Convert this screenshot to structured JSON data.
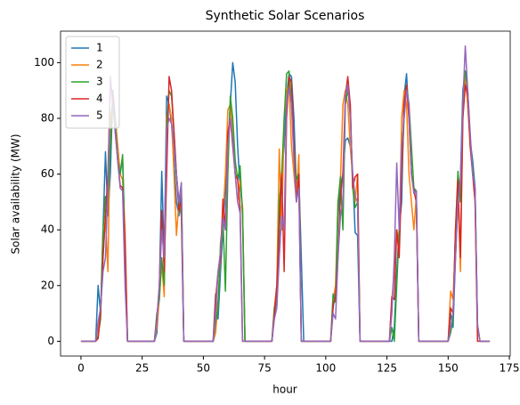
{
  "chart_data": {
    "type": "line",
    "title": "Synthetic Solar Scenarios",
    "x_label": "hour",
    "y_label": "Solar availability (MW)",
    "xlim": [
      -8.35,
      175.35
    ],
    "ylim": [
      -5.3,
      111.3
    ],
    "xticks": [
      0,
      25,
      50,
      75,
      100,
      125,
      150,
      175
    ],
    "yticks": [
      0,
      20,
      40,
      60,
      80,
      100
    ],
    "legend": "upper left",
    "x": [
      0,
      1,
      2,
      3,
      4,
      5,
      6,
      7,
      8,
      9,
      10,
      11,
      12,
      13,
      14,
      15,
      16,
      17,
      18,
      19,
      20,
      21,
      22,
      23,
      24,
      25,
      26,
      27,
      28,
      29,
      30,
      31,
      32,
      33,
      34,
      35,
      36,
      37,
      38,
      39,
      40,
      41,
      42,
      43,
      44,
      45,
      46,
      47,
      48,
      49,
      50,
      51,
      52,
      53,
      54,
      55,
      56,
      57,
      58,
      59,
      60,
      61,
      62,
      63,
      64,
      65,
      66,
      67,
      68,
      69,
      70,
      71,
      72,
      73,
      74,
      75,
      76,
      77,
      78,
      79,
      80,
      81,
      82,
      83,
      84,
      85,
      86,
      87,
      88,
      89,
      90,
      91,
      92,
      93,
      94,
      95,
      96,
      97,
      98,
      99,
      100,
      101,
      102,
      103,
      104,
      105,
      106,
      107,
      108,
      109,
      110,
      111,
      112,
      113,
      114,
      115,
      116,
      117,
      118,
      119,
      120,
      121,
      122,
      123,
      124,
      125,
      126,
      127,
      128,
      129,
      130,
      131,
      132,
      133,
      134,
      135,
      136,
      137,
      138,
      139,
      140,
      141,
      142,
      143,
      144,
      145,
      146,
      147,
      148,
      149,
      150,
      151,
      152,
      153,
      154,
      155,
      156,
      157,
      158,
      159,
      160,
      161,
      162,
      163,
      164,
      165,
      166,
      167
    ],
    "series": [
      {
        "name": "1",
        "color": "#1f77b4",
        "values": [
          0,
          0,
          0,
          0,
          0,
          0,
          0,
          20,
          10,
          40,
          68,
          45,
          60,
          90,
          80,
          70,
          60,
          66,
          35,
          0,
          0,
          0,
          0,
          0,
          0,
          0,
          0,
          0,
          0,
          0,
          0,
          3,
          18,
          61,
          30,
          88,
          85,
          78,
          65,
          50,
          45,
          55,
          0,
          0,
          0,
          0,
          0,
          0,
          0,
          0,
          0,
          0,
          0,
          0,
          0,
          17,
          8,
          25,
          40,
          55,
          70,
          85,
          100,
          93,
          70,
          55,
          48,
          0,
          0,
          0,
          0,
          0,
          0,
          0,
          0,
          0,
          0,
          0,
          0,
          10,
          15,
          40,
          60,
          70,
          88,
          96,
          95,
          80,
          55,
          60,
          30,
          0,
          0,
          0,
          0,
          0,
          0,
          0,
          0,
          0,
          0,
          0,
          0,
          12,
          18,
          45,
          55,
          60,
          72,
          73,
          70,
          60,
          39,
          38,
          0,
          0,
          0,
          0,
          0,
          0,
          0,
          0,
          0,
          0,
          0,
          0,
          0,
          0,
          5,
          25,
          40,
          50,
          88,
          96,
          80,
          60,
          55,
          53,
          0,
          0,
          0,
          0,
          0,
          0,
          0,
          0,
          0,
          0,
          0,
          0,
          0,
          10,
          5,
          30,
          50,
          58,
          90,
          97,
          85,
          72,
          65,
          55,
          5,
          0,
          0,
          0,
          0,
          0
        ]
      },
      {
        "name": "2",
        "color": "#ff7f0e",
        "values": [
          0,
          0,
          0,
          0,
          0,
          0,
          0,
          5,
          12,
          30,
          45,
          25,
          80,
          85,
          80,
          70,
          60,
          58,
          40,
          0,
          0,
          0,
          0,
          0,
          0,
          0,
          0,
          0,
          0,
          0,
          0,
          5,
          15,
          28,
          16,
          80,
          85,
          80,
          60,
          38,
          50,
          56,
          0,
          0,
          0,
          0,
          0,
          0,
          0,
          0,
          0,
          0,
          0,
          0,
          0,
          3,
          15,
          30,
          45,
          60,
          83,
          85,
          75,
          60,
          50,
          58,
          48,
          0,
          0,
          0,
          0,
          0,
          0,
          0,
          0,
          0,
          0,
          0,
          0,
          12,
          20,
          69,
          40,
          80,
          90,
          92,
          70,
          60,
          50,
          67,
          0,
          0,
          0,
          0,
          0,
          0,
          0,
          0,
          0,
          0,
          0,
          0,
          0,
          15,
          20,
          50,
          58,
          85,
          90,
          85,
          70,
          60,
          50,
          60,
          0,
          0,
          0,
          0,
          0,
          0,
          0,
          0,
          0,
          0,
          0,
          0,
          0,
          15,
          25,
          40,
          35,
          80,
          90,
          85,
          60,
          50,
          40,
          52,
          0,
          0,
          0,
          0,
          0,
          0,
          0,
          0,
          0,
          0,
          0,
          0,
          0,
          18,
          15,
          35,
          55,
          25,
          80,
          95,
          85,
          70,
          62,
          50,
          5,
          0,
          0,
          0,
          0,
          0
        ]
      },
      {
        "name": "3",
        "color": "#2ca02c",
        "values": [
          0,
          0,
          0,
          0,
          0,
          0,
          0,
          2,
          8,
          40,
          52,
          50,
          70,
          88,
          78,
          65,
          60,
          67,
          30,
          0,
          0,
          0,
          0,
          0,
          0,
          0,
          0,
          0,
          0,
          0,
          0,
          10,
          15,
          30,
          20,
          75,
          90,
          88,
          75,
          60,
          50,
          45,
          0,
          0,
          0,
          0,
          0,
          0,
          0,
          0,
          0,
          0,
          0,
          0,
          0,
          7,
          12,
          35,
          44,
          18,
          60,
          88,
          80,
          65,
          58,
          63,
          45,
          0,
          0,
          0,
          0,
          0,
          0,
          0,
          0,
          0,
          0,
          0,
          0,
          12,
          15,
          50,
          60,
          80,
          96,
          97,
          85,
          70,
          58,
          60,
          0,
          0,
          0,
          0,
          0,
          0,
          0,
          0,
          0,
          0,
          0,
          0,
          0,
          17,
          14,
          50,
          59,
          40,
          85,
          90,
          85,
          55,
          48,
          50,
          0,
          0,
          0,
          0,
          0,
          0,
          0,
          0,
          0,
          0,
          0,
          0,
          0,
          5,
          0,
          20,
          40,
          60,
          80,
          92,
          85,
          70,
          55,
          54,
          0,
          0,
          0,
          0,
          0,
          0,
          0,
          0,
          0,
          0,
          0,
          0,
          0,
          3,
          8,
          40,
          61,
          50,
          88,
          97,
          90,
          72,
          62,
          52,
          6,
          0,
          0,
          0,
          0,
          0
        ]
      },
      {
        "name": "4",
        "color": "#d62728",
        "values": [
          0,
          0,
          0,
          0,
          0,
          0,
          0,
          1,
          10,
          30,
          45,
          60,
          92,
          88,
          75,
          65,
          56,
          55,
          35,
          0,
          0,
          0,
          0,
          0,
          0,
          0,
          0,
          0,
          0,
          0,
          0,
          8,
          20,
          47,
          25,
          60,
          95,
          90,
          75,
          60,
          47,
          50,
          0,
          0,
          0,
          0,
          0,
          0,
          0,
          0,
          0,
          0,
          0,
          0,
          0,
          15,
          25,
          30,
          51,
          40,
          75,
          80,
          70,
          60,
          58,
          48,
          0,
          0,
          0,
          0,
          0,
          0,
          0,
          0,
          0,
          0,
          0,
          0,
          0,
          10,
          20,
          40,
          60,
          25,
          80,
          95,
          93,
          70,
          50,
          60,
          0,
          0,
          0,
          0,
          0,
          0,
          0,
          0,
          0,
          0,
          0,
          0,
          0,
          13,
          16,
          30,
          52,
          60,
          88,
          95,
          85,
          55,
          59,
          60,
          0,
          0,
          0,
          0,
          0,
          0,
          0,
          0,
          0,
          0,
          0,
          0,
          0,
          16,
          15,
          40,
          30,
          60,
          85,
          92,
          80,
          60,
          54,
          50,
          0,
          0,
          0,
          0,
          0,
          0,
          0,
          0,
          0,
          0,
          0,
          0,
          0,
          12,
          10,
          40,
          58,
          30,
          80,
          92,
          88,
          70,
          60,
          50,
          0,
          0,
          0,
          0,
          0,
          0
        ]
      },
      {
        "name": "5",
        "color": "#9467bd",
        "values": [
          0,
          0,
          0,
          0,
          0,
          0,
          0,
          7,
          12,
          25,
          30,
          55,
          95,
          85,
          75,
          65,
          55,
          54,
          20,
          0,
          0,
          0,
          0,
          0,
          0,
          0,
          0,
          0,
          0,
          0,
          0,
          7,
          20,
          40,
          30,
          76,
          80,
          78,
          70,
          60,
          50,
          57,
          0,
          0,
          0,
          0,
          0,
          0,
          0,
          0,
          0,
          0,
          0,
          0,
          0,
          10,
          25,
          32,
          44,
          40,
          70,
          80,
          72,
          60,
          50,
          46,
          0,
          0,
          0,
          0,
          0,
          0,
          0,
          0,
          0,
          0,
          0,
          0,
          0,
          8,
          12,
          30,
          45,
          40,
          85,
          91,
          85,
          65,
          50,
          55,
          0,
          0,
          0,
          0,
          0,
          0,
          0,
          0,
          0,
          0,
          0,
          0,
          0,
          10,
          8,
          30,
          45,
          50,
          88,
          92,
          80,
          60,
          52,
          50,
          0,
          0,
          0,
          0,
          0,
          0,
          0,
          0,
          0,
          0,
          0,
          0,
          0,
          10,
          30,
          64,
          40,
          70,
          80,
          90,
          85,
          60,
          53,
          54,
          0,
          0,
          0,
          0,
          0,
          0,
          0,
          0,
          0,
          0,
          0,
          0,
          0,
          5,
          10,
          30,
          50,
          57,
          85,
          106,
          90,
          75,
          60,
          55,
          6,
          0,
          0,
          0,
          0,
          0
        ]
      }
    ]
  }
}
